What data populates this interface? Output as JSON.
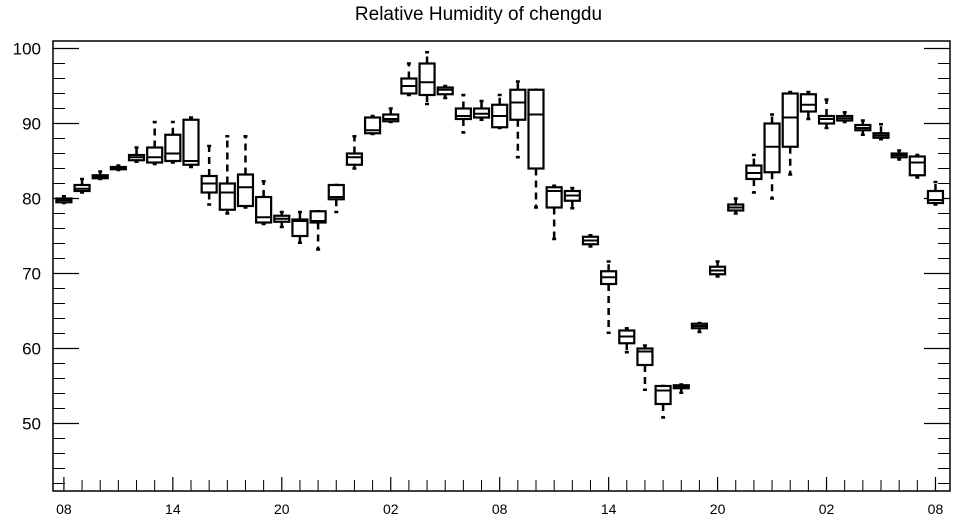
{
  "chart_data": {
    "type": "boxplot",
    "title": "Relative Humidity of chengdu",
    "xlabel": "",
    "ylabel": "",
    "ylim": [
      41,
      101
    ],
    "y_ticks": [
      50,
      60,
      70,
      80,
      90,
      100
    ],
    "x_tick_labels": [
      "08",
      "14",
      "20",
      "02",
      "08",
      "14",
      "20",
      "02",
      "08"
    ],
    "x_tick_hours": [
      0,
      6,
      12,
      18,
      24,
      30,
      36,
      42,
      48
    ],
    "x_range_hours": [
      -0.6,
      48.8
    ],
    "grid": false,
    "legend": "none",
    "series": [
      {
        "hour": 0,
        "min": 79.4,
        "q1": 79.5,
        "median": 79.8,
        "q3": 80.0,
        "max": 80.3
      },
      {
        "hour": 1,
        "min": 80.8,
        "q1": 81.0,
        "median": 81.3,
        "q3": 81.8,
        "max": 82.6
      },
      {
        "hour": 2,
        "min": 82.6,
        "q1": 82.7,
        "median": 82.9,
        "q3": 83.1,
        "max": 83.6
      },
      {
        "hour": 3,
        "min": 83.8,
        "q1": 83.9,
        "median": 84.0,
        "q3": 84.2,
        "max": 84.4
      },
      {
        "hour": 4,
        "min": 84.9,
        "q1": 85.1,
        "median": 85.5,
        "q3": 85.8,
        "max": 86.8
      },
      {
        "hour": 5,
        "min": 84.6,
        "q1": 84.8,
        "median": 85.5,
        "q3": 86.8,
        "max": 90.2
      },
      {
        "hour": 6,
        "min": 84.8,
        "q1": 85.0,
        "median": 86.0,
        "q3": 88.5,
        "max": 90.2
      },
      {
        "hour": 7,
        "min": 84.2,
        "q1": 84.5,
        "median": 85.0,
        "q3": 90.5,
        "max": 90.8
      },
      {
        "hour": 8,
        "min": 79.2,
        "q1": 80.8,
        "median": 82.0,
        "q3": 83.0,
        "max": 87.0
      },
      {
        "hour": 9,
        "min": 78.0,
        "q1": 78.5,
        "median": 80.8,
        "q3": 82.0,
        "max": 88.3
      },
      {
        "hour": 10,
        "min": 78.8,
        "q1": 79.0,
        "median": 81.5,
        "q3": 83.2,
        "max": 88.3
      },
      {
        "hour": 11,
        "min": 76.6,
        "q1": 76.8,
        "median": 77.5,
        "q3": 80.2,
        "max": 82.3
      },
      {
        "hour": 12,
        "min": 76.2,
        "q1": 76.9,
        "median": 77.3,
        "q3": 77.7,
        "max": 78.2
      },
      {
        "hour": 13,
        "min": 74.1,
        "q1": 75.0,
        "median": 77.0,
        "q3": 77.2,
        "max": 78.2
      },
      {
        "hour": 14,
        "min": 73.2,
        "q1": 76.8,
        "median": 77.0,
        "q3": 78.3,
        "max": 78.3
      },
      {
        "hour": 15,
        "min": 78.2,
        "q1": 79.9,
        "median": 80.2,
        "q3": 81.8,
        "max": 81.8
      },
      {
        "hour": 16,
        "min": 84.0,
        "q1": 84.5,
        "median": 85.5,
        "q3": 86.0,
        "max": 88.3
      },
      {
        "hour": 17,
        "min": 88.6,
        "q1": 88.7,
        "median": 89.1,
        "q3": 90.8,
        "max": 91.0
      },
      {
        "hour": 18,
        "min": 90.2,
        "q1": 90.3,
        "median": 90.6,
        "q3": 91.2,
        "max": 92.0
      },
      {
        "hour": 19,
        "min": 93.8,
        "q1": 94.0,
        "median": 95.0,
        "q3": 96.0,
        "max": 98.0
      },
      {
        "hour": 20,
        "min": 92.6,
        "q1": 93.8,
        "median": 95.5,
        "q3": 98.0,
        "max": 99.5
      },
      {
        "hour": 21,
        "min": 93.4,
        "q1": 93.9,
        "median": 94.5,
        "q3": 94.8,
        "max": 95.0
      },
      {
        "hour": 22,
        "min": 88.8,
        "q1": 90.6,
        "median": 91.0,
        "q3": 92.0,
        "max": 93.8
      },
      {
        "hour": 23,
        "min": 90.5,
        "q1": 90.8,
        "median": 91.3,
        "q3": 92.0,
        "max": 93.0
      },
      {
        "hour": 24,
        "min": 89.4,
        "q1": 89.5,
        "median": 91.0,
        "q3": 92.5,
        "max": 93.8
      },
      {
        "hour": 25,
        "min": 85.5,
        "q1": 90.5,
        "median": 92.8,
        "q3": 94.5,
        "max": 95.6
      },
      {
        "hour": 26,
        "min": 78.8,
        "q1": 84.0,
        "median": 91.2,
        "q3": 94.5,
        "max": 94.5
      },
      {
        "hour": 27,
        "min": 74.6,
        "q1": 78.8,
        "median": 81.0,
        "q3": 81.5,
        "max": 81.7
      },
      {
        "hour": 28,
        "min": 78.7,
        "q1": 79.7,
        "median": 80.4,
        "q3": 81.0,
        "max": 81.4
      },
      {
        "hour": 29,
        "min": 73.6,
        "q1": 73.9,
        "median": 74.4,
        "q3": 74.9,
        "max": 75.1
      },
      {
        "hour": 30,
        "min": 62.1,
        "q1": 68.6,
        "median": 69.5,
        "q3": 70.3,
        "max": 71.6
      },
      {
        "hour": 31,
        "min": 59.5,
        "q1": 60.7,
        "median": 61.6,
        "q3": 62.4,
        "max": 62.7
      },
      {
        "hour": 32,
        "min": 54.5,
        "q1": 57.8,
        "median": 59.6,
        "q3": 60.0,
        "max": 60.4
      },
      {
        "hour": 33,
        "min": 50.8,
        "q1": 52.6,
        "median": 54.4,
        "q3": 55.0,
        "max": 55.0
      },
      {
        "hour": 34,
        "min": 54.1,
        "q1": 54.7,
        "median": 54.9,
        "q3": 55.1,
        "max": 55.2
      },
      {
        "hour": 35,
        "min": 62.2,
        "q1": 62.7,
        "median": 63.0,
        "q3": 63.3,
        "max": 63.4
      },
      {
        "hour": 36,
        "min": 69.6,
        "q1": 69.9,
        "median": 70.4,
        "q3": 70.9,
        "max": 71.6
      },
      {
        "hour": 37,
        "min": 78.0,
        "q1": 78.4,
        "median": 78.8,
        "q3": 79.2,
        "max": 80.0
      },
      {
        "hour": 38,
        "min": 80.8,
        "q1": 82.6,
        "median": 83.4,
        "q3": 84.4,
        "max": 85.8
      },
      {
        "hour": 39,
        "min": 80.0,
        "q1": 83.5,
        "median": 86.9,
        "q3": 90.0,
        "max": 91.2
      },
      {
        "hour": 40,
        "min": 83.2,
        "q1": 86.9,
        "median": 90.8,
        "q3": 94.0,
        "max": 94.2
      },
      {
        "hour": 41,
        "min": 90.6,
        "q1": 91.6,
        "median": 92.5,
        "q3": 93.9,
        "max": 94.2
      },
      {
        "hour": 42,
        "min": 89.4,
        "q1": 90.0,
        "median": 90.6,
        "q3": 91.0,
        "max": 93.2
      },
      {
        "hour": 43,
        "min": 90.2,
        "q1": 90.4,
        "median": 90.7,
        "q3": 91.0,
        "max": 91.5
      },
      {
        "hour": 44,
        "min": 88.5,
        "q1": 89.1,
        "median": 89.4,
        "q3": 89.8,
        "max": 90.4
      },
      {
        "hour": 45,
        "min": 87.9,
        "q1": 88.1,
        "median": 88.4,
        "q3": 88.7,
        "max": 89.9
      },
      {
        "hour": 46,
        "min": 85.2,
        "q1": 85.5,
        "median": 85.8,
        "q3": 86.0,
        "max": 86.4
      },
      {
        "hour": 47,
        "min": 82.8,
        "q1": 83.1,
        "median": 84.8,
        "q3": 85.6,
        "max": 85.8
      },
      {
        "hour": 48,
        "min": 79.2,
        "q1": 79.4,
        "median": 79.8,
        "q3": 81.0,
        "max": 82.2
      }
    ]
  }
}
